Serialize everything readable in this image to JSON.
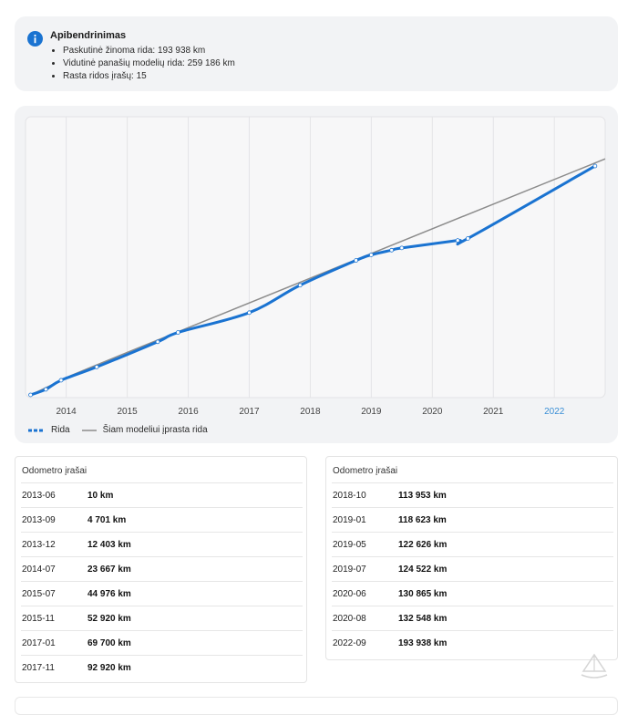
{
  "summary": {
    "title": "Apibendrinimas",
    "items": [
      "Paskutinė žinoma rida: 193 938 km",
      "Vidutinė panašių modelių rida: 259 186 km",
      "Rasta ridos įrašų: 15"
    ]
  },
  "legend": {
    "series1": "Rida",
    "series2": "Šiam modeliui įprasta rida"
  },
  "colors": {
    "series1": "#1a73d1",
    "series2": "#8c8c8c",
    "highlight_tick": "#3a8fd6"
  },
  "chart_data": {
    "type": "line",
    "x_ticks": [
      "2014",
      "2015",
      "2016",
      "2017",
      "2018",
      "2019",
      "2020",
      "2021",
      "2022"
    ],
    "highlighted_tick": "2022",
    "xlim": [
      "2013-05",
      "2022-11"
    ],
    "grid": true,
    "legend_position": "bottom-left",
    "series": [
      {
        "name": "Rida",
        "points": [
          {
            "x": "2013-06",
            "y": 10
          },
          {
            "x": "2013-09",
            "y": 4701
          },
          {
            "x": "2013-12",
            "y": 12403
          },
          {
            "x": "2014-07",
            "y": 23667
          },
          {
            "x": "2015-07",
            "y": 44976
          },
          {
            "x": "2015-11",
            "y": 52920
          },
          {
            "x": "2017-01",
            "y": 69700
          },
          {
            "x": "2017-11",
            "y": 92920
          },
          {
            "x": "2018-10",
            "y": 113953
          },
          {
            "x": "2019-01",
            "y": 118623
          },
          {
            "x": "2019-05",
            "y": 122626
          },
          {
            "x": "2019-07",
            "y": 124522
          },
          {
            "x": "2020-06",
            "y": 130865
          },
          {
            "x": "2020-08",
            "y": 132548
          },
          {
            "x": "2022-09",
            "y": 193938
          }
        ]
      },
      {
        "name": "Šiam modeliui įprasta rida",
        "points": [
          {
            "x": "2013-06",
            "y": 0
          },
          {
            "x": "2014-01",
            "y": 14000
          },
          {
            "x": "2015-01",
            "y": 36000
          },
          {
            "x": "2022-11",
            "y": 200000
          }
        ]
      }
    ]
  },
  "tables": {
    "left": {
      "title": "Odometro įrašai",
      "rows": [
        {
          "date": "2013-06",
          "km": "10 km"
        },
        {
          "date": "2013-09",
          "km": "4 701 km"
        },
        {
          "date": "2013-12",
          "km": "12 403 km"
        },
        {
          "date": "2014-07",
          "km": "23 667 km"
        },
        {
          "date": "2015-07",
          "km": "44 976 km"
        },
        {
          "date": "2015-11",
          "km": "52 920 km"
        },
        {
          "date": "2017-01",
          "km": "69 700 km"
        },
        {
          "date": "2017-11",
          "km": "92 920 km"
        }
      ]
    },
    "right": {
      "title": "Odometro įrašai",
      "rows": [
        {
          "date": "2018-10",
          "km": "113 953 km"
        },
        {
          "date": "2019-01",
          "km": "118 623 km"
        },
        {
          "date": "2019-05",
          "km": "122 626 km"
        },
        {
          "date": "2019-07",
          "km": "124 522 km"
        },
        {
          "date": "2020-06",
          "km": "130 865 km"
        },
        {
          "date": "2020-08",
          "km": "132 548 km"
        },
        {
          "date": "2022-09",
          "km": "193 938 km"
        }
      ]
    }
  }
}
